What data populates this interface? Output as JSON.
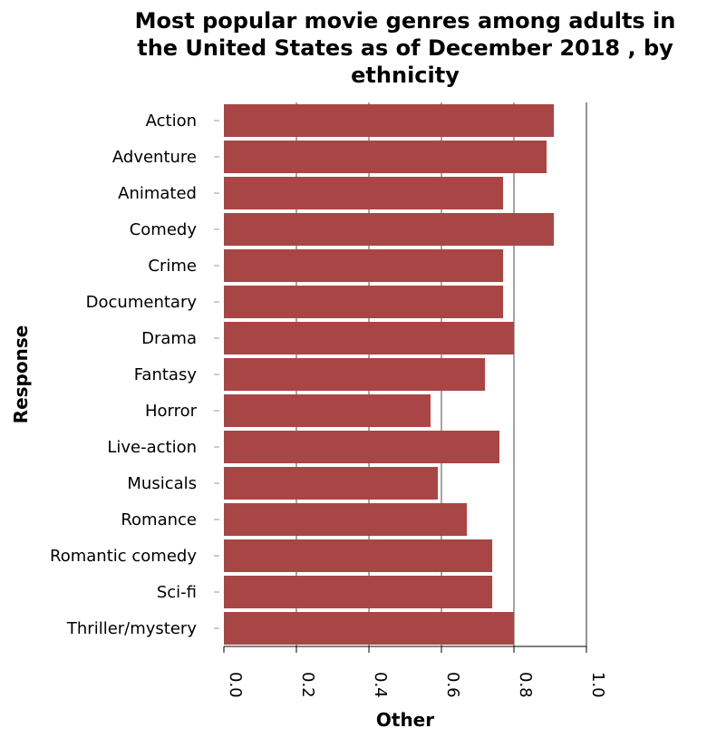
{
  "chart_data": {
    "type": "bar",
    "orientation": "horizontal",
    "title_lines": [
      "Most popular movie genres among adults in",
      "the United States as of December 2018 , by",
      "ethnicity"
    ],
    "xlabel": "Other",
    "ylabel": "Response",
    "xlim": [
      0,
      1.0
    ],
    "x_ticks": [
      "0.0",
      "0.2",
      "0.4",
      "0.6",
      "0.8",
      "1.0"
    ],
    "grid": "vertical lines at 0.6 and 0.8 visible",
    "categories": [
      "Action",
      "Adventure",
      "Animated",
      "Comedy",
      "Crime",
      "Documentary",
      "Drama",
      "Fantasy",
      "Horror",
      "Live-action",
      "Musicals",
      "Romance",
      "Romantic comedy",
      "Sci-fi",
      "Thriller/mystery"
    ],
    "values": [
      0.91,
      0.89,
      0.77,
      0.91,
      0.77,
      0.77,
      0.8,
      0.72,
      0.57,
      0.76,
      0.59,
      0.67,
      0.74,
      0.74,
      0.8
    ],
    "bar_color": "#a84646",
    "grid_color": "#888888"
  }
}
